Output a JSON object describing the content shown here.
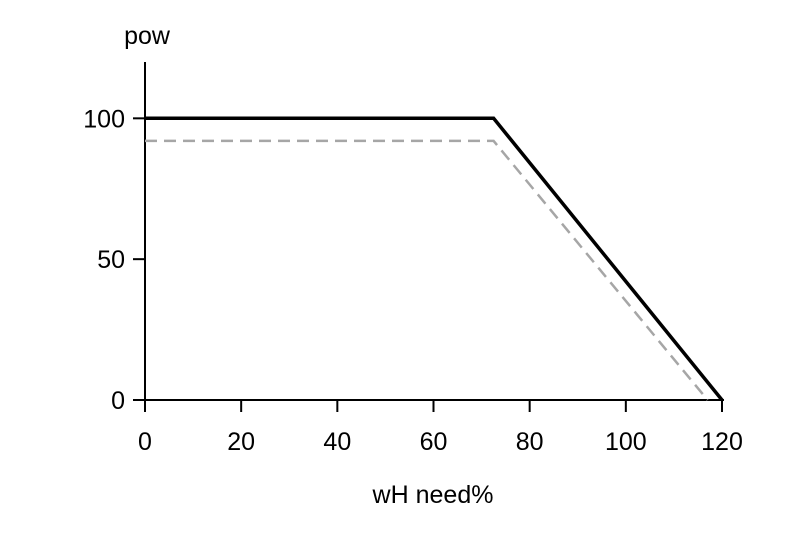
{
  "chart_data": {
    "type": "line",
    "xlabel": "wH need%",
    "ylabel": "pow",
    "xlim": [
      0,
      120
    ],
    "ylim": [
      0,
      120
    ],
    "x_ticks": [
      0,
      20,
      40,
      60,
      80,
      100,
      120
    ],
    "y_ticks": [
      0,
      50,
      100
    ],
    "x_tick_labels": [
      "0",
      "20",
      "40",
      "60",
      "80",
      "100",
      "120"
    ],
    "y_tick_labels": [
      "0",
      "50",
      "100"
    ],
    "grid": false,
    "series": [
      {
        "style": "solid",
        "color": "#000000",
        "points": [
          [
            0,
            100
          ],
          [
            72.5,
            100
          ],
          [
            120,
            0
          ]
        ]
      },
      {
        "style": "dashed",
        "color": "#a6a6a6",
        "points": [
          [
            0,
            92
          ],
          [
            72.5,
            92
          ],
          [
            117,
            0
          ]
        ]
      }
    ]
  }
}
